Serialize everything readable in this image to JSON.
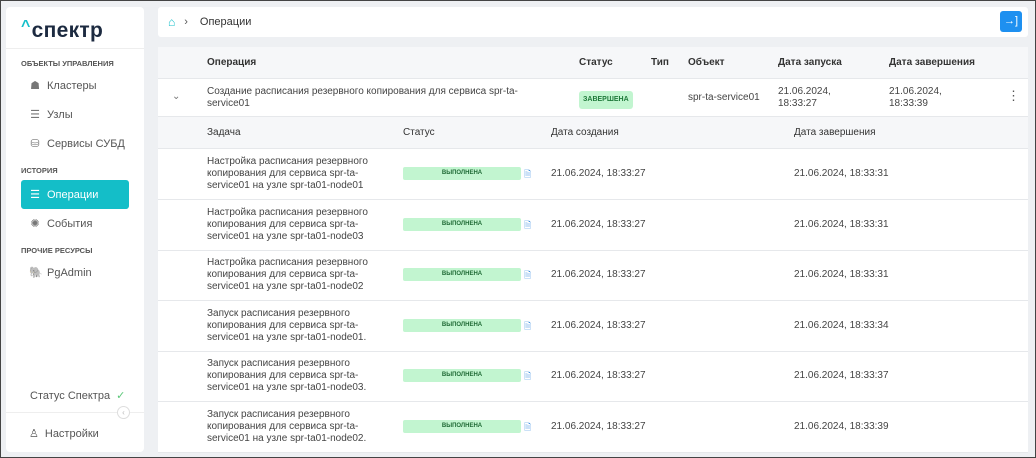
{
  "sidebar": {
    "logo": "спектр",
    "sections": [
      {
        "title": "ОБЪЕКТЫ УПРАВЛЕНИЯ",
        "items": [
          {
            "label": "Кластеры",
            "icon": "clusters-icon"
          },
          {
            "label": "Узлы",
            "icon": "nodes-icon"
          },
          {
            "label": "Сервисы СУБД",
            "icon": "db-services-icon"
          }
        ]
      },
      {
        "title": "ИСТОРИЯ",
        "items": [
          {
            "label": "Операции",
            "icon": "operations-icon",
            "active": true
          },
          {
            "label": "События",
            "icon": "events-icon"
          }
        ]
      },
      {
        "title": "ПРОЧИЕ РЕСУРСЫ",
        "items": [
          {
            "label": "PgAdmin",
            "icon": "pgadmin-icon"
          }
        ]
      }
    ],
    "status_label": "Статус Спектра",
    "settings_label": "Настройки"
  },
  "breadcrumb": {
    "current": "Операции"
  },
  "colors": {
    "accent": "#14bec8",
    "primary": "#1e90f0",
    "success_bg": "#c2f5d0"
  },
  "table": {
    "headers": {
      "operation": "Операция",
      "status": "Статус",
      "type": "Тип",
      "object": "Объект",
      "start": "Дата запуска",
      "end": "Дата завершения"
    },
    "operation": {
      "name": "Создание расписания резервного копирования для сервиса spr-ta-service01",
      "status": "ЗАВЕРШЕНА",
      "type": "",
      "object": "spr-ta-service01",
      "start": "21.06.2024, 18:33:27",
      "end": "21.06.2024, 18:33:39"
    },
    "task_headers": {
      "task": "Задача",
      "status": "Статус",
      "created": "Дата создания",
      "finished": "Дата завершения"
    },
    "tasks": [
      {
        "task": "Настройка расписания резервного копирования для сервиса spr-ta-service01 на узле spr-ta01-node01",
        "status": "ВЫПОЛНЕНА",
        "created": "21.06.2024, 18:33:27",
        "finished": "21.06.2024, 18:33:31"
      },
      {
        "task": "Настройка расписания резервного копирования для сервиса spr-ta-service01 на узле spr-ta01-node03",
        "status": "ВЫПОЛНЕНА",
        "created": "21.06.2024, 18:33:27",
        "finished": "21.06.2024, 18:33:31"
      },
      {
        "task": "Настройка расписания резервного копирования для сервиса spr-ta-service01 на узле spr-ta01-node02",
        "status": "ВЫПОЛНЕНА",
        "created": "21.06.2024, 18:33:27",
        "finished": "21.06.2024, 18:33:31"
      },
      {
        "task": "Запуск расписания резервного копирования для сервиса spr-ta-service01 на узле spr-ta01-node01.",
        "status": "ВЫПОЛНЕНА",
        "created": "21.06.2024, 18:33:27",
        "finished": "21.06.2024, 18:33:34"
      },
      {
        "task": "Запуск расписания резервного копирования для сервиса spr-ta-service01 на узле spr-ta01-node03.",
        "status": "ВЫПОЛНЕНА",
        "created": "21.06.2024, 18:33:27",
        "finished": "21.06.2024, 18:33:37"
      },
      {
        "task": "Запуск расписания резервного копирования для сервиса spr-ta-service01 на узле spr-ta01-node02.",
        "status": "ВЫПОЛНЕНА",
        "created": "21.06.2024, 18:33:27",
        "finished": "21.06.2024, 18:33:39"
      }
    ]
  }
}
